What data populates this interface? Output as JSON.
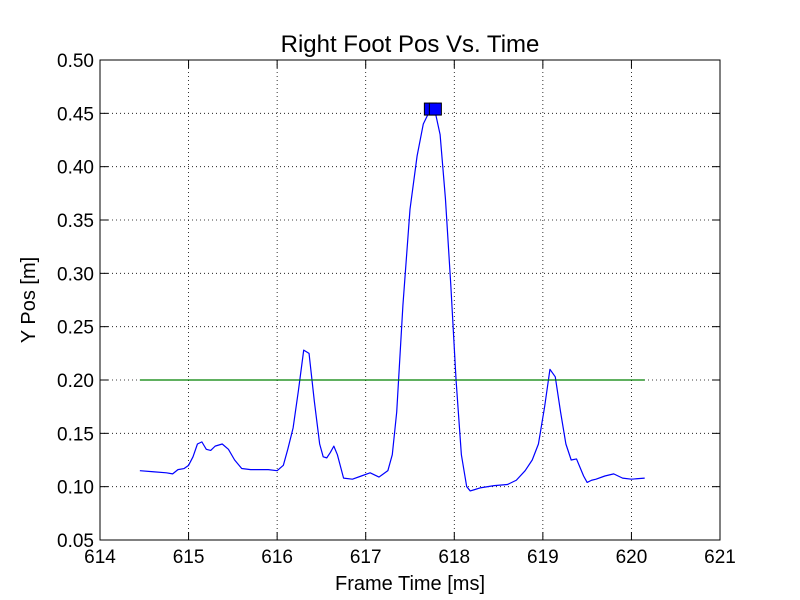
{
  "chart_data": {
    "type": "line",
    "title": "Right Foot Pos Vs. Time",
    "xlabel": "Frame Time [ms]",
    "ylabel": "Y Pos [m]",
    "xlim": [
      614,
      621
    ],
    "ylim": [
      0.05,
      0.5
    ],
    "xticks": [
      "614",
      "615",
      "616",
      "617",
      "618",
      "619",
      "620",
      "621"
    ],
    "yticks": [
      "0.05",
      "0.10",
      "0.15",
      "0.20",
      "0.25",
      "0.30",
      "0.35",
      "0.40",
      "0.45",
      "0.50"
    ],
    "grid": true,
    "series": [
      {
        "color": "#0000ff",
        "x": [
          614.45,
          614.6,
          614.75,
          614.82,
          614.88,
          614.95,
          615.0,
          615.05,
          615.1,
          615.15,
          615.2,
          615.25,
          615.3,
          615.38,
          615.45,
          615.52,
          615.6,
          615.7,
          615.8,
          615.9,
          616.0,
          616.07,
          616.12,
          616.18,
          616.24,
          616.3,
          616.36,
          616.42,
          616.48,
          616.52,
          616.56,
          616.6,
          616.64,
          616.68,
          616.75,
          616.85,
          616.95,
          617.05,
          617.15,
          617.25,
          617.3,
          617.35,
          617.42,
          617.5,
          617.58,
          617.65,
          617.72,
          617.78,
          617.84,
          617.9,
          617.96,
          618.02,
          618.08,
          618.14,
          618.18,
          618.22,
          618.3,
          618.45,
          618.6,
          618.7,
          618.8,
          618.88,
          618.95,
          619.02,
          619.08,
          619.14,
          619.2,
          619.26,
          619.32,
          619.38,
          619.42,
          619.46,
          619.5,
          619.55,
          619.6,
          619.7,
          619.8,
          619.9,
          620.0,
          620.15
        ],
        "y": [
          0.115,
          0.114,
          0.113,
          0.112,
          0.116,
          0.117,
          0.12,
          0.128,
          0.14,
          0.142,
          0.135,
          0.134,
          0.138,
          0.14,
          0.135,
          0.125,
          0.117,
          0.116,
          0.116,
          0.116,
          0.115,
          0.12,
          0.135,
          0.155,
          0.19,
          0.228,
          0.225,
          0.18,
          0.14,
          0.128,
          0.127,
          0.132,
          0.138,
          0.13,
          0.108,
          0.107,
          0.11,
          0.113,
          0.109,
          0.115,
          0.13,
          0.17,
          0.27,
          0.36,
          0.41,
          0.44,
          0.452,
          0.453,
          0.43,
          0.37,
          0.29,
          0.2,
          0.13,
          0.1,
          0.096,
          0.097,
          0.099,
          0.101,
          0.102,
          0.106,
          0.115,
          0.125,
          0.14,
          0.175,
          0.21,
          0.203,
          0.17,
          0.14,
          0.125,
          0.126,
          0.118,
          0.11,
          0.104,
          0.106,
          0.107,
          0.11,
          0.112,
          0.108,
          0.107,
          0.108
        ]
      },
      {
        "color": "#008000",
        "x": [
          614.45,
          620.15
        ],
        "y": [
          0.2,
          0.2
        ]
      }
    ],
    "markers": [
      {
        "x": 617.73,
        "y": 0.454,
        "color": "#0000ff",
        "edge": "#000000"
      }
    ]
  }
}
